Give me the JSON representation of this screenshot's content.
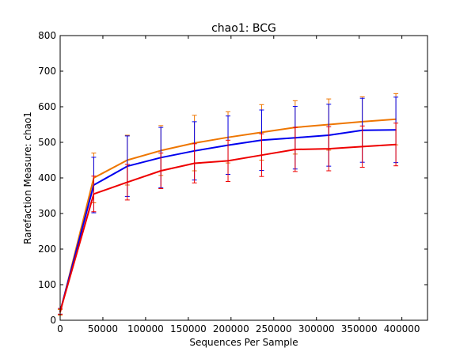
{
  "chart_data": {
    "type": "line",
    "title": "chao1: BCG",
    "xlabel": "Sequences Per Sample",
    "ylabel": "Rarefaction Measure: chao1",
    "xlim": [
      0,
      430000
    ],
    "ylim": [
      0,
      800
    ],
    "xticks": [
      0,
      50000,
      100000,
      150000,
      200000,
      250000,
      300000,
      350000,
      400000
    ],
    "yticks": [
      0,
      100,
      200,
      300,
      400,
      500,
      600,
      700,
      800
    ],
    "x": [
      10,
      39300,
      78600,
      117900,
      157200,
      196500,
      235800,
      275100,
      314400,
      353700,
      393000
    ],
    "series": [
      {
        "color": "#ee7600",
        "values": [
          22,
          400,
          450,
          477,
          498,
          514,
          528,
          542,
          550,
          558,
          565
        ],
        "err": [
          8,
          70,
          70,
          70,
          78,
          72,
          78,
          75,
          72,
          70,
          72
        ]
      },
      {
        "color": "#0000ee",
        "values": [
          25,
          380,
          433,
          457,
          476,
          492,
          506,
          513,
          520,
          534,
          535
        ],
        "err": [
          8,
          78,
          85,
          85,
          82,
          82,
          85,
          88,
          87,
          90,
          92
        ]
      },
      {
        "color": "#ee0000",
        "values": [
          25,
          355,
          388,
          420,
          441,
          448,
          464,
          480,
          482,
          488,
          494
        ],
        "err": [
          8,
          50,
          50,
          50,
          55,
          58,
          60,
          62,
          62,
          58,
          60
        ]
      }
    ],
    "grid": false,
    "legend": "none"
  }
}
